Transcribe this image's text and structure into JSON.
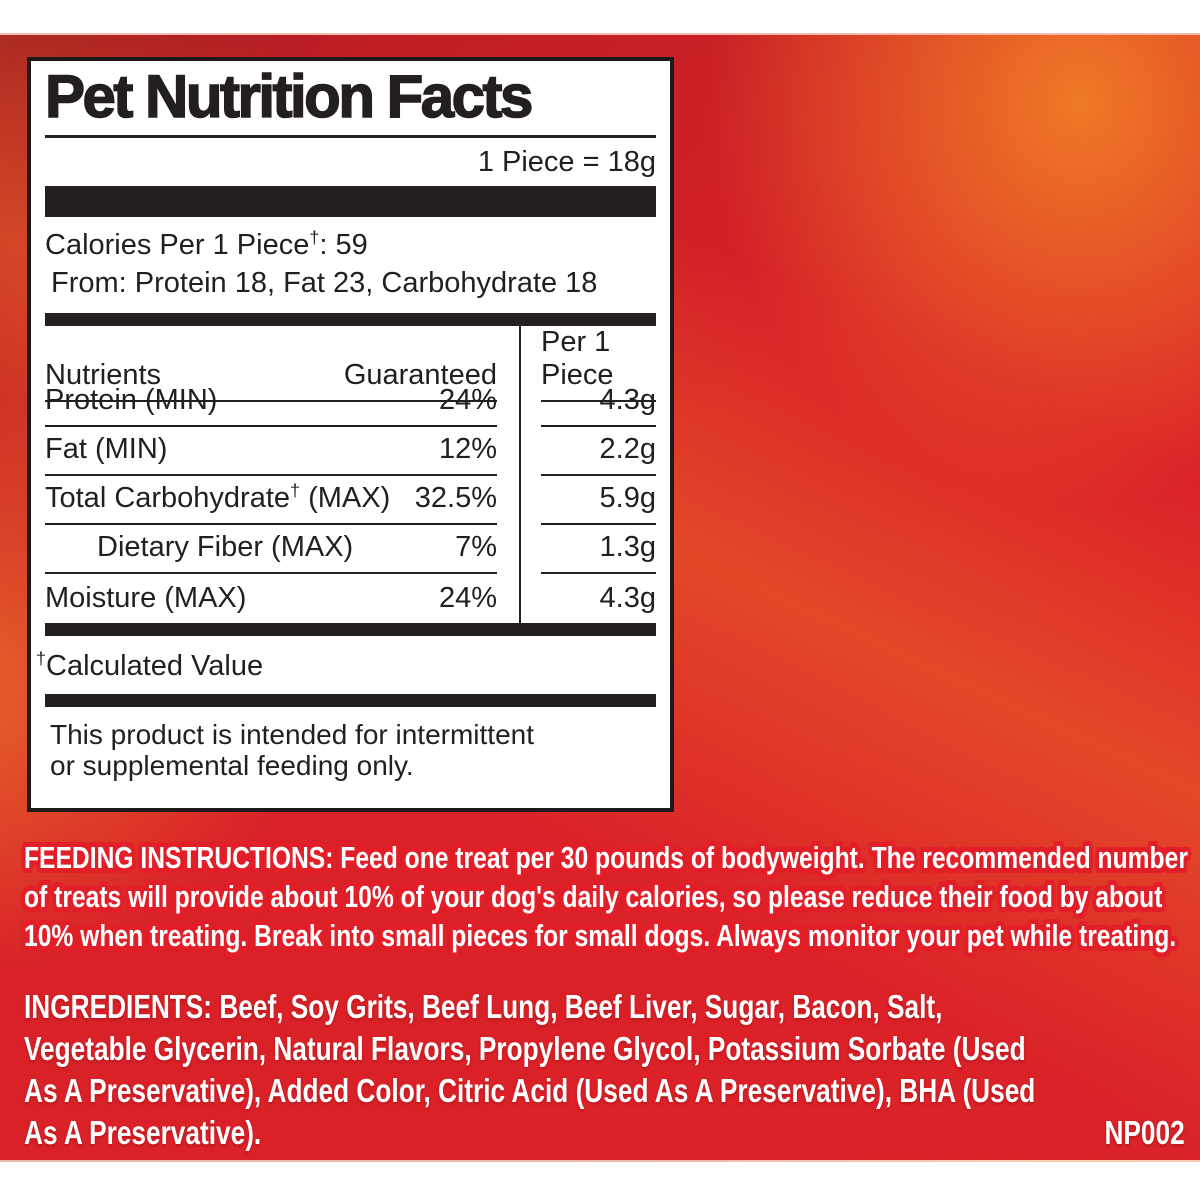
{
  "label": {
    "title": "Pet Nutrition Facts",
    "serving": "1 Piece = 18g",
    "calories": {
      "prefix": "Calories Per 1 Piece",
      "dagger": "†",
      "suffix": ": 59"
    },
    "calories_from": "From: Protein 18, Fat 23, Carbohydrate 18",
    "table": {
      "headers": {
        "nutrients": "Nutrients",
        "guaranteed": "Guaranteed",
        "per_piece": "Per 1 Piece"
      },
      "rows": [
        {
          "name": "Protein (MIN)",
          "guaranteed": "24%",
          "per_piece": "4.3g"
        },
        {
          "name": "Fat (MIN)",
          "guaranteed": "12%",
          "per_piece": "2.2g"
        },
        {
          "name": "Total Carbohydrate",
          "dagger": "†",
          "suffix": " (MAX)",
          "guaranteed": "32.5%",
          "per_piece": "5.9g"
        },
        {
          "name": "Dietary Fiber (MAX)",
          "guaranteed": "7%",
          "per_piece": "1.3g"
        },
        {
          "name": "Moisture (MAX)",
          "guaranteed": "24%",
          "per_piece": "4.3g"
        }
      ]
    },
    "footnote": {
      "dagger": "†",
      "text": "Calculated Value"
    },
    "disclaimer_lines": [
      "This product is intended for intermittent",
      "or supplemental feeding only."
    ]
  },
  "feeding": {
    "lines": [
      "FEEDING INSTRUCTIONS: Feed one treat per 30 pounds of bodyweight. The recommended number",
      "of treats will provide about 10% of your dog's daily calories, so please reduce their food by about",
      "10% when treating. Break into small pieces for small dogs. Always monitor your pet while treating."
    ]
  },
  "ingredients": {
    "lines": [
      "INGREDIENTS: Beef, Soy Grits, Beef Lung, Beef Liver, Sugar, Bacon, Salt,",
      "Vegetable Glycerin, Natural Flavors, Propylene Glycol, Potassium Sorbate (Used",
      "As A Preservative), Added Color, Citric Acid (Used As A Preservative), BHA (Used",
      "As A Preservative)."
    ]
  },
  "product_code": "NP002",
  "colors": {
    "background_dark_red": "#9e1c21",
    "background_red": "#d92328",
    "background_orange": "#ee7a28",
    "outline_red": "#e21e28",
    "label_text": "#231f20",
    "text_white": "#ffffff",
    "page_margin": "#ffffff"
  }
}
